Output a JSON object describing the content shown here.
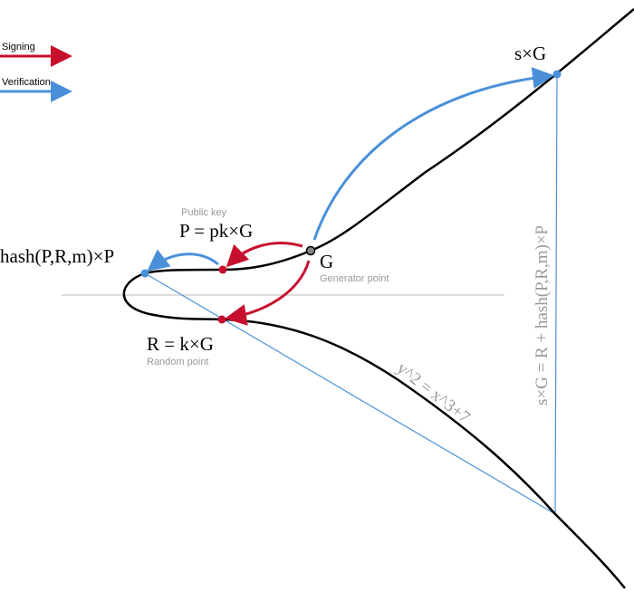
{
  "legend": {
    "signing": "Signing",
    "verification": "Verification"
  },
  "labels": {
    "sG": "s×G",
    "public_key_caption": "Public key",
    "public_key": "P = pk×G",
    "hash_point": "hash(P,R,m)×P",
    "generator": "G",
    "generator_caption": "Generator point",
    "random": "R = k×G",
    "random_caption": "Random point",
    "curve_equation": "y^2 = x^3+7",
    "verification_equation": "s×G = R + hash(P,R,m)×P"
  },
  "colors": {
    "signing": "#c8102e",
    "verification": "#4a90d9",
    "curve": "#000000",
    "axis": "#bbbbbb",
    "caption": "#999999"
  }
}
